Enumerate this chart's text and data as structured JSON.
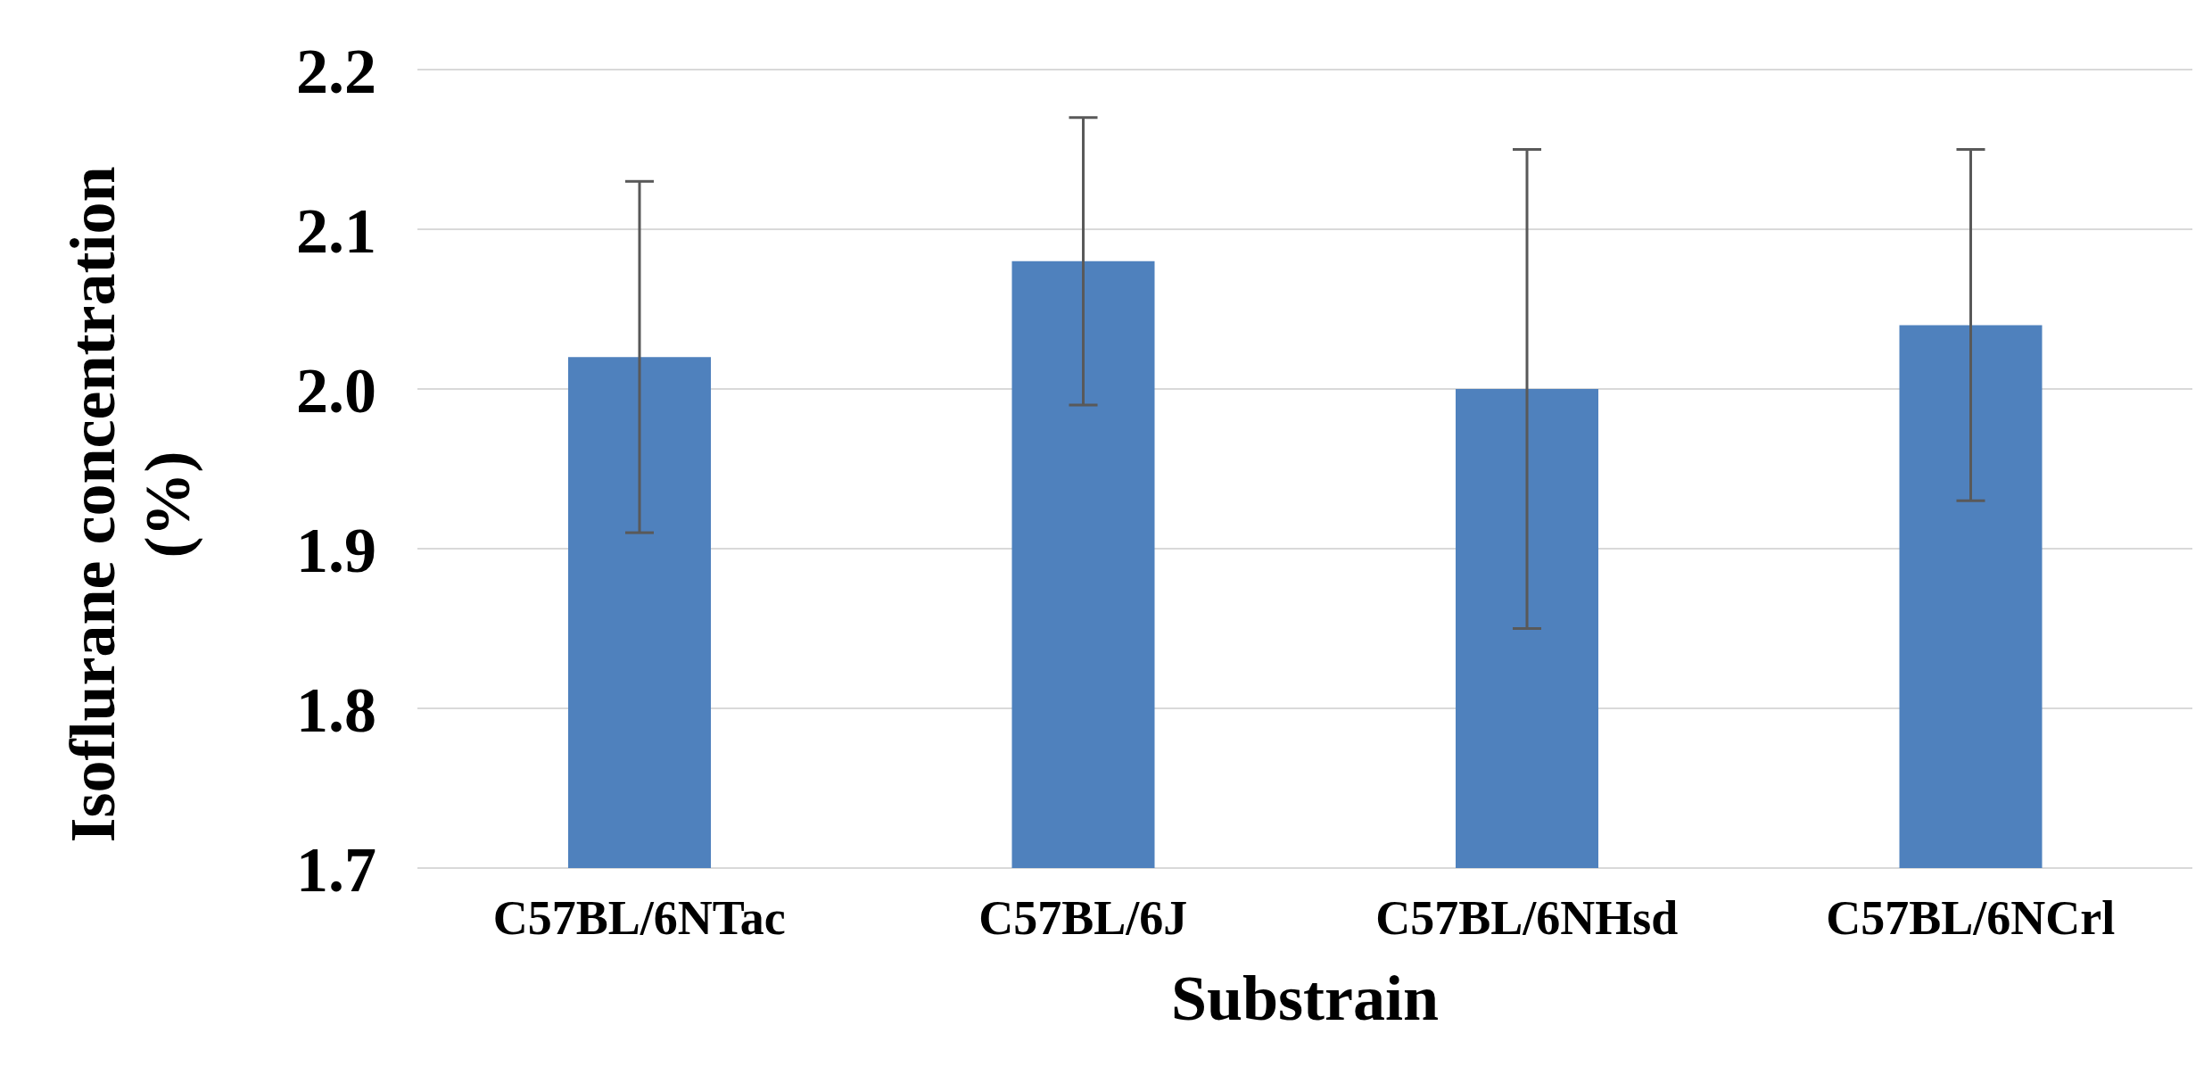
{
  "chart_data": {
    "type": "bar",
    "xlabel": "Substrain",
    "ylabel": "Isoflurane concentration (%)",
    "categories": [
      "C57BL/6NTac",
      "C57BL/6J",
      "C57BL/6NHsd",
      "C57BL/6NCrl"
    ],
    "values": [
      2.02,
      2.08,
      2.0,
      2.04
    ],
    "errors": [
      0.11,
      0.09,
      0.15,
      0.11
    ],
    "color": "#4f81bd",
    "ylim": [
      1.7,
      2.2
    ],
    "yticks": [
      {
        "value": 1.7,
        "label": "1.7"
      },
      {
        "value": 1.8,
        "label": "1.8"
      },
      {
        "value": 1.9,
        "label": "1.9"
      },
      {
        "value": 2.0,
        "label": "2.0"
      },
      {
        "value": 2.1,
        "label": "2.1"
      },
      {
        "value": 2.2,
        "label": "2.2"
      }
    ],
    "grid": "y"
  }
}
